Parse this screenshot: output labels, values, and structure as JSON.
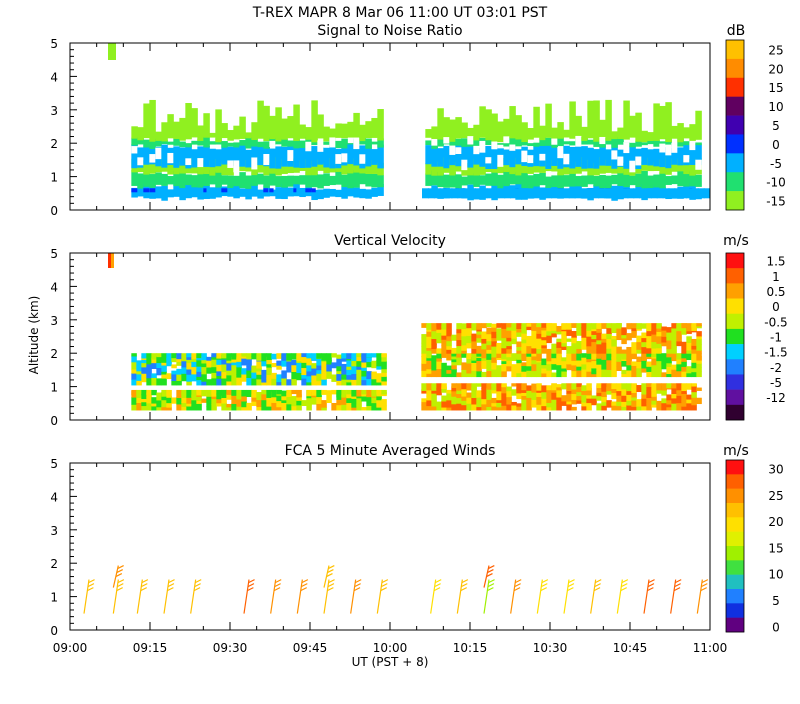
{
  "header": {
    "line1": "T-REX   MAPR   8 Mar 06   11:00 UT   03:01   PST"
  },
  "axes": {
    "ylabel": "Altitude (km)",
    "xlabel": "UT  (PST + 8)",
    "x_ticks": [
      "09:00",
      "09:15",
      "09:30",
      "09:45",
      "10:00",
      "10:15",
      "10:30",
      "10:45",
      "11:00"
    ],
    "x_minutes": [
      0,
      15,
      30,
      45,
      60,
      75,
      90,
      105,
      120
    ],
    "y_ticks": [
      "0",
      "1",
      "2",
      "3",
      "4",
      "5"
    ],
    "y_values": [
      0,
      1,
      2,
      3,
      4,
      5
    ],
    "ylim": [
      0,
      5
    ],
    "xlim_minutes": [
      0,
      120
    ],
    "data_gap_minutes": [
      59.5,
      65.5
    ]
  },
  "chart_data": [
    {
      "type": "heatmap",
      "title": "Signal to Noise Ratio",
      "units": "dB",
      "colorbar_labels": [
        "25",
        "20",
        "15",
        "10",
        "5",
        "0",
        "-5",
        "-10",
        "-15"
      ],
      "colors": [
        "#ffc000",
        "#ff8c00",
        "#ff3000",
        "#600060",
        "#4000b0",
        "#0030ff",
        "#00b0ff",
        "#20e070",
        "#90f020"
      ],
      "layers": [
        {
          "from_km": 0.35,
          "to_km": 0.7,
          "level": "-5",
          "color": "#00b0ff"
        },
        {
          "from_km": 0.7,
          "to_km": 1.1,
          "level": "-10",
          "color": "#20e070"
        },
        {
          "from_km": 1.1,
          "to_km": 1.5,
          "level": "-15",
          "color": "#90f020"
        },
        {
          "from_km": 1.3,
          "to_km": 1.9,
          "level": "-5",
          "color": "#00b0ff"
        },
        {
          "from_km": 1.9,
          "to_km": 2.1,
          "level": "-10",
          "color": "#20e070"
        },
        {
          "from_km": 2.1,
          "to_km": 3.3,
          "level": "-15",
          "color": "#90f020"
        }
      ]
    },
    {
      "type": "heatmap",
      "title": "Vertical Velocity",
      "units": "m/s",
      "colorbar_labels": [
        "1.5",
        "1",
        "0.5",
        "0",
        "-0.5",
        "-1",
        "-1.5",
        "-2",
        "-5",
        "-12"
      ],
      "colors": [
        "#ff1010",
        "#ff6000",
        "#ffa000",
        "#ffe000",
        "#c0f000",
        "#20e020",
        "#00d0ff",
        "#2080ff",
        "#3030e0",
        "#6010a0",
        "#300030"
      ],
      "layers": [
        {
          "from_km": 0.3,
          "to_km": 0.9,
          "level": "0",
          "color": "#ffe000"
        },
        {
          "from_km": 1.3,
          "to_km": 2.0,
          "level": "-0.5",
          "color": "#20e020"
        },
        {
          "from_km": 2.0,
          "to_km": 2.9,
          "level": "0.5",
          "color": "#ffa000"
        }
      ]
    },
    {
      "type": "scatter",
      "title": "FCA 5 Minute Averaged Winds",
      "units": "m/s",
      "colorbar_labels": [
        "30",
        "25",
        "20",
        "15",
        "10",
        "5",
        "0"
      ],
      "colors": [
        "#ff1010",
        "#ff6000",
        "#ff9000",
        "#ffc000",
        "#ffe000",
        "#e0f000",
        "#a0f000",
        "#40e040",
        "#20c0c0",
        "#2080ff",
        "#1030e0",
        "#600080"
      ],
      "series": [
        {
          "name": "wind barbs near 1 km",
          "x_minutes": [
            3,
            8.5,
            13,
            18,
            23,
            33,
            38,
            43,
            48,
            53,
            58,
            68,
            73,
            78,
            83,
            88,
            93,
            98,
            103,
            108,
            113,
            118
          ],
          "altitude_km": [
            1.0,
            1.0,
            1.0,
            1.0,
            1.0,
            1.0,
            1.0,
            1.0,
            1.0,
            1.0,
            1.0,
            1.0,
            1.0,
            1.0,
            1.0,
            1.0,
            1.0,
            1.0,
            1.0,
            1.0,
            1.0,
            1.0
          ],
          "speed_ms": [
            21,
            22,
            21,
            21,
            22,
            25,
            24,
            23,
            22,
            23,
            22,
            20,
            21,
            18,
            24,
            20,
            19,
            22,
            20,
            26,
            25,
            24
          ]
        },
        {
          "name": "wind barbs near 1.6 km",
          "x_minutes": [
            8.5,
            48,
            78
          ],
          "altitude_km": [
            1.6,
            1.6,
            1.6
          ],
          "speed_ms": [
            24,
            21,
            25
          ]
        }
      ]
    }
  ]
}
